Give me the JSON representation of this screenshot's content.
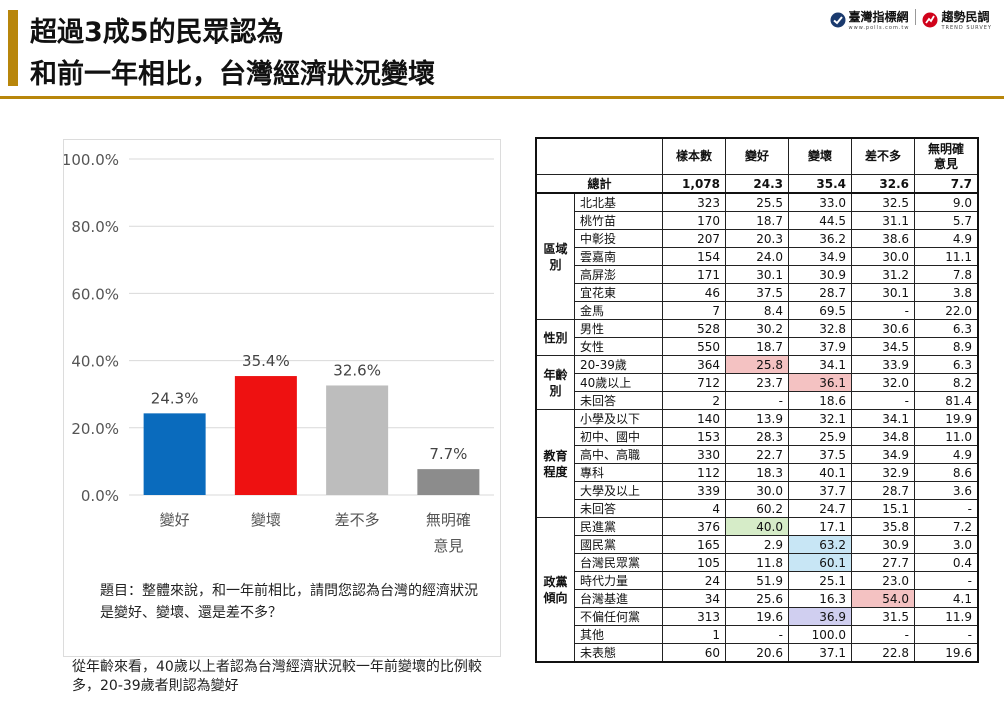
{
  "header": {
    "title_line1": "超過3成5的民眾認為",
    "title_line2": "和前一年相比，台灣經濟狀況變壞",
    "logo1_name": "臺灣指標網",
    "logo1_sub": "www.polls.com.tw",
    "logo2_name": "趨勢民調",
    "logo2_sub": "TREND SURVEY"
  },
  "chart_data": {
    "type": "bar",
    "categories": [
      [
        "變好"
      ],
      [
        "變壞"
      ],
      [
        "差不多"
      ],
      [
        "無明確",
        "意見"
      ]
    ],
    "values": [
      24.3,
      35.4,
      32.6,
      7.7
    ],
    "value_labels": [
      "24.3%",
      "35.4%",
      "32.6%",
      "7.7%"
    ],
    "colors": [
      "#0a6bbd",
      "#ee1111",
      "#bdbdbd",
      "#8c8c8c"
    ],
    "ylim": [
      0,
      100
    ],
    "yticks": [
      "0.0%",
      "20.0%",
      "40.0%",
      "60.0%",
      "80.0%",
      "100.0%"
    ],
    "ytick_values": [
      0,
      20,
      40,
      60,
      80,
      100
    ],
    "grid": true,
    "title": "",
    "xlabel": "",
    "ylabel": ""
  },
  "chart_note": "題目：整體來說，和一年前相比，請問您認為台灣的經濟狀況是變好、變壞、還是差不多？",
  "bottom_note": "從年齡來看，40歲以上者認為台灣經濟狀況較一年前變壞的比例較多，20-39歲者則認為變好",
  "table": {
    "columns": [
      "樣本數",
      "變好",
      "變壞",
      "差不多",
      "無明確\n意見"
    ],
    "total": {
      "label": "總計",
      "values": [
        "1,078",
        "24.3",
        "35.4",
        "32.6",
        "7.7"
      ]
    },
    "highlight_colors": {
      "red": "#f4c2c2",
      "green": "#d6ecc8",
      "blue": "#c8e6f5",
      "lavender": "#d0cff0"
    },
    "groups": [
      {
        "label": "區域別",
        "rows": [
          {
            "label": "北北基",
            "values": [
              "323",
              "25.5",
              "33.0",
              "32.5",
              "9.0"
            ]
          },
          {
            "label": "桃竹苗",
            "values": [
              "170",
              "18.7",
              "44.5",
              "31.1",
              "5.7"
            ]
          },
          {
            "label": "中彰投",
            "values": [
              "207",
              "20.3",
              "36.2",
              "38.6",
              "4.9"
            ]
          },
          {
            "label": "雲嘉南",
            "values": [
              "154",
              "24.0",
              "34.9",
              "30.0",
              "11.1"
            ]
          },
          {
            "label": "高屏澎",
            "values": [
              "171",
              "30.1",
              "30.9",
              "31.2",
              "7.8"
            ]
          },
          {
            "label": "宜花東",
            "values": [
              "46",
              "37.5",
              "28.7",
              "30.1",
              "3.8"
            ]
          },
          {
            "label": "金馬",
            "values": [
              "7",
              "8.4",
              "69.5",
              "-",
              "22.0"
            ]
          }
        ]
      },
      {
        "label": "性別",
        "rows": [
          {
            "label": "男性",
            "values": [
              "528",
              "30.2",
              "32.8",
              "30.6",
              "6.3"
            ]
          },
          {
            "label": "女性",
            "values": [
              "550",
              "18.7",
              "37.9",
              "34.5",
              "8.9"
            ]
          }
        ]
      },
      {
        "label": "年齡別",
        "rows": [
          {
            "label": "20-39歲",
            "values": [
              "364",
              "25.8",
              "34.1",
              "33.9",
              "6.3"
            ],
            "hl": {
              "1": "red"
            }
          },
          {
            "label": "40歲以上",
            "values": [
              "712",
              "23.7",
              "36.1",
              "32.0",
              "8.2"
            ],
            "hl": {
              "2": "red"
            }
          },
          {
            "label": "未回答",
            "values": [
              "2",
              "-",
              "18.6",
              "-",
              "81.4"
            ]
          }
        ]
      },
      {
        "label": "教育程度",
        "rows": [
          {
            "label": "小學及以下",
            "values": [
              "140",
              "13.9",
              "32.1",
              "34.1",
              "19.9"
            ]
          },
          {
            "label": "初中、國中",
            "values": [
              "153",
              "28.3",
              "25.9",
              "34.8",
              "11.0"
            ]
          },
          {
            "label": "高中、高職",
            "values": [
              "330",
              "22.7",
              "37.5",
              "34.9",
              "4.9"
            ]
          },
          {
            "label": "專科",
            "values": [
              "112",
              "18.3",
              "40.1",
              "32.9",
              "8.6"
            ]
          },
          {
            "label": "大學及以上",
            "values": [
              "339",
              "30.0",
              "37.7",
              "28.7",
              "3.6"
            ]
          },
          {
            "label": "未回答",
            "values": [
              "4",
              "60.2",
              "24.7",
              "15.1",
              "-"
            ]
          }
        ]
      },
      {
        "label": "政黨傾向",
        "rows": [
          {
            "label": "民進黨",
            "values": [
              "376",
              "40.0",
              "17.1",
              "35.8",
              "7.2"
            ],
            "hl": {
              "1": "green"
            }
          },
          {
            "label": "國民黨",
            "values": [
              "165",
              "2.9",
              "63.2",
              "30.9",
              "3.0"
            ],
            "hl": {
              "2": "blue"
            }
          },
          {
            "label": "台灣民眾黨",
            "values": [
              "105",
              "11.8",
              "60.1",
              "27.7",
              "0.4"
            ],
            "hl": {
              "2": "blue"
            }
          },
          {
            "label": "時代力量",
            "values": [
              "24",
              "51.9",
              "25.1",
              "23.0",
              "-"
            ]
          },
          {
            "label": "台灣基進",
            "values": [
              "34",
              "25.6",
              "16.3",
              "54.0",
              "4.1"
            ],
            "hl": {
              "3": "red"
            }
          },
          {
            "label": "不偏任何黨",
            "values": [
              "313",
              "19.6",
              "36.9",
              "31.5",
              "11.9"
            ],
            "hl": {
              "2": "lavender"
            }
          },
          {
            "label": "其他",
            "values": [
              "1",
              "-",
              "100.0",
              "-",
              "-"
            ]
          },
          {
            "label": "未表態",
            "values": [
              "60",
              "20.6",
              "37.1",
              "22.8",
              "19.6"
            ]
          }
        ]
      }
    ]
  }
}
